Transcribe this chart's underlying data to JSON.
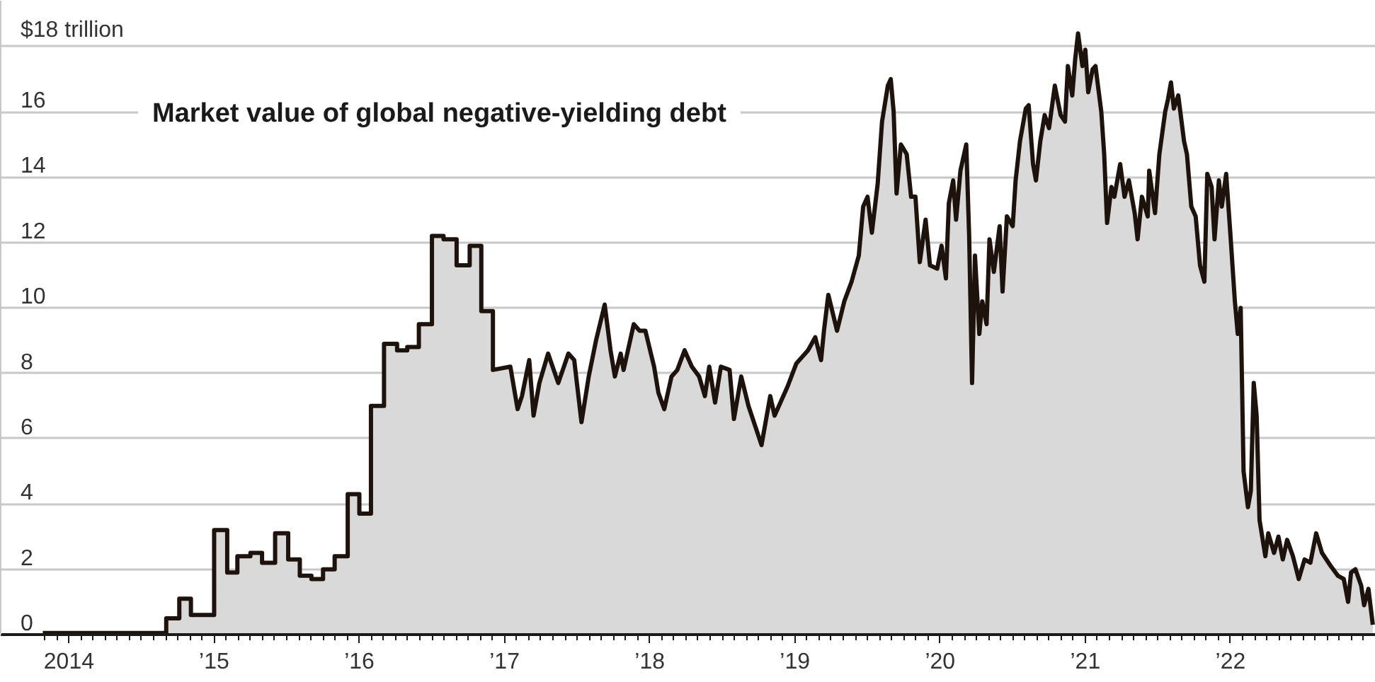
{
  "chart_data": {
    "type": "area",
    "title": "Market value of global negative-yielding debt",
    "x": [
      2013.82,
      2014.67,
      2014.67,
      2014.76,
      2014.76,
      2014.84,
      2014.84,
      2015.0,
      2015.0,
      2015.09,
      2015.09,
      2015.16,
      2015.16,
      2015.25,
      2015.25,
      2015.33,
      2015.33,
      2015.42,
      2015.42,
      2015.51,
      2015.51,
      2015.59,
      2015.59,
      2015.67,
      2015.67,
      2015.75,
      2015.75,
      2015.83,
      2015.83,
      2015.92,
      2015.92,
      2016.0,
      2016.0,
      2016.08,
      2016.08,
      2016.17,
      2016.17,
      2016.26,
      2016.26,
      2016.33,
      2016.33,
      2016.41,
      2016.41,
      2016.5,
      2016.5,
      2016.58,
      2016.58,
      2016.67,
      2016.67,
      2016.76,
      2016.76,
      2016.84,
      2016.84,
      2016.92,
      2016.92,
      2017.04,
      2017.09,
      2017.12,
      2017.17,
      2017.2,
      2017.24,
      2017.3,
      2017.37,
      2017.44,
      2017.48,
      2017.53,
      2017.58,
      2017.63,
      2017.69,
      2017.73,
      2017.76,
      2017.8,
      2017.82,
      2017.85,
      2017.89,
      2017.93,
      2017.97,
      2018.03,
      2018.06,
      2018.1,
      2018.15,
      2018.19,
      2018.24,
      2018.29,
      2018.34,
      2018.38,
      2018.41,
      2018.45,
      2018.49,
      2018.55,
      2018.58,
      2018.63,
      2018.68,
      2018.77,
      2018.83,
      2018.86,
      2018.95,
      2019.01,
      2019.09,
      2019.14,
      2019.18,
      2019.2,
      2019.23,
      2019.29,
      2019.34,
      2019.39,
      2019.44,
      2019.47,
      2019.5,
      2019.53,
      2019.57,
      2019.6,
      2019.64,
      2019.66,
      2019.68,
      2019.7,
      2019.73,
      2019.77,
      2019.8,
      2019.83,
      2019.86,
      2019.9,
      2019.93,
      2019.98,
      2020.01,
      2020.04,
      2020.06,
      2020.09,
      2020.11,
      2020.14,
      2020.18,
      2020.2,
      2020.22,
      2020.24,
      2020.27,
      2020.29,
      2020.32,
      2020.34,
      2020.37,
      2020.41,
      2020.43,
      2020.46,
      2020.5,
      2020.52,
      2020.55,
      2020.59,
      2020.61,
      2020.64,
      2020.66,
      2020.69,
      2020.72,
      2020.75,
      2020.79,
      2020.83,
      2020.86,
      2020.88,
      2020.91,
      2020.93,
      2020.95,
      2020.98,
      2021.0,
      2021.02,
      2021.05,
      2021.07,
      2021.11,
      2021.13,
      2021.15,
      2021.18,
      2021.2,
      2021.24,
      2021.27,
      2021.3,
      2021.34,
      2021.36,
      2021.39,
      2021.43,
      2021.44,
      2021.48,
      2021.51,
      2021.55,
      2021.57,
      2021.59,
      2021.61,
      2021.64,
      2021.68,
      2021.7,
      2021.73,
      2021.76,
      2021.79,
      2021.82,
      2021.84,
      2021.87,
      2021.89,
      2021.92,
      2021.94,
      2021.97,
      2022.0,
      2022.03,
      2022.05,
      2022.07,
      2022.09,
      2022.12,
      2022.14,
      2022.16,
      2022.18,
      2022.2,
      2022.24,
      2022.26,
      2022.3,
      2022.33,
      2022.36,
      2022.39,
      2022.43,
      2022.47,
      2022.51,
      2022.55,
      2022.59,
      2022.63,
      2022.69,
      2022.74,
      2022.78,
      2022.81,
      2022.83,
      2022.86,
      2022.9,
      2022.92,
      2022.95,
      2022.98
    ],
    "series": [
      {
        "color": "#1e130c",
        "values": [
          0.05,
          0.05,
          0.5,
          0.5,
          1.1,
          1.1,
          0.6,
          0.6,
          3.2,
          3.2,
          1.9,
          1.9,
          2.4,
          2.4,
          2.5,
          2.5,
          2.2,
          2.2,
          3.1,
          3.1,
          2.3,
          2.3,
          1.8,
          1.8,
          1.7,
          1.7,
          2.0,
          2.0,
          2.4,
          2.4,
          4.3,
          4.3,
          3.7,
          3.7,
          7.0,
          7.0,
          8.9,
          8.9,
          8.7,
          8.7,
          8.8,
          8.8,
          9.5,
          9.5,
          12.2,
          12.2,
          12.1,
          12.1,
          11.3,
          11.3,
          11.9,
          11.9,
          9.9,
          9.9,
          8.1,
          8.2,
          6.9,
          7.3,
          8.4,
          6.7,
          7.7,
          8.6,
          7.7,
          8.6,
          8.4,
          6.5,
          7.9,
          9.0,
          10.1,
          8.7,
          7.9,
          8.6,
          8.1,
          8.7,
          9.5,
          9.3,
          9.3,
          8.2,
          7.4,
          6.9,
          7.9,
          8.1,
          8.7,
          8.2,
          7.9,
          7.3,
          8.2,
          7.1,
          8.2,
          8.1,
          6.6,
          7.9,
          7.0,
          5.8,
          7.3,
          6.7,
          7.6,
          8.3,
          8.7,
          9.1,
          8.4,
          9.3,
          10.4,
          9.3,
          10.2,
          10.8,
          11.6,
          13.1,
          13.4,
          12.3,
          13.8,
          15.7,
          16.8,
          17.0,
          16.0,
          13.5,
          15.0,
          14.7,
          13.4,
          13.4,
          11.4,
          12.7,
          11.3,
          11.2,
          11.9,
          10.9,
          13.2,
          13.9,
          12.7,
          14.2,
          15.0,
          12.2,
          7.7,
          11.6,
          9.2,
          10.2,
          9.5,
          12.1,
          11.1,
          12.5,
          10.5,
          12.8,
          12.5,
          13.9,
          15.1,
          16.1,
          16.2,
          14.4,
          13.9,
          15.1,
          15.9,
          15.5,
          16.8,
          15.9,
          15.7,
          17.4,
          16.5,
          17.6,
          18.4,
          17.4,
          17.9,
          16.6,
          17.3,
          17.4,
          16.0,
          14.7,
          12.6,
          13.7,
          13.4,
          14.4,
          13.4,
          13.9,
          12.9,
          12.1,
          13.4,
          12.8,
          14.2,
          12.9,
          14.7,
          16.0,
          16.4,
          16.9,
          16.1,
          16.5,
          15.1,
          14.7,
          13.1,
          12.8,
          11.3,
          10.8,
          14.1,
          13.7,
          12.1,
          13.9,
          13.1,
          14.1,
          12.2,
          10.2,
          9.2,
          10.0,
          5.0,
          3.9,
          4.4,
          7.7,
          6.7,
          3.5,
          2.4,
          3.1,
          2.5,
          3.0,
          2.3,
          2.9,
          2.4,
          1.7,
          2.3,
          2.2,
          3.1,
          2.5,
          2.1,
          1.8,
          1.7,
          1.0,
          1.9,
          2.0,
          1.5,
          0.9,
          1.4,
          0.3
        ]
      }
    ],
    "xlim": [
      2013.53,
      2023.0
    ],
    "xticks": [
      {
        "value": 2013.833,
        "label": null
      },
      {
        "value": 2013.917,
        "label": null
      },
      {
        "value": 2014,
        "label": "2014"
      },
      {
        "value": 2014.083,
        "label": null
      },
      {
        "value": 2014.167,
        "label": null
      },
      {
        "value": 2014.25,
        "label": null
      },
      {
        "value": 2014.333,
        "label": null
      },
      {
        "value": 2014.417,
        "label": null
      },
      {
        "value": 2014.5,
        "label": null
      },
      {
        "value": 2014.583,
        "label": null
      },
      {
        "value": 2014.667,
        "label": null
      },
      {
        "value": 2014.75,
        "label": null
      },
      {
        "value": 2014.833,
        "label": null
      },
      {
        "value": 2014.917,
        "label": null
      },
      {
        "value": 2015,
        "label": "’15"
      },
      {
        "value": 2015.083,
        "label": null
      },
      {
        "value": 2015.167,
        "label": null
      },
      {
        "value": 2015.25,
        "label": null
      },
      {
        "value": 2015.333,
        "label": null
      },
      {
        "value": 2015.417,
        "label": null
      },
      {
        "value": 2015.5,
        "label": null
      },
      {
        "value": 2015.583,
        "label": null
      },
      {
        "value": 2015.667,
        "label": null
      },
      {
        "value": 2015.75,
        "label": null
      },
      {
        "value": 2015.833,
        "label": null
      },
      {
        "value": 2015.917,
        "label": null
      },
      {
        "value": 2016,
        "label": "’16"
      },
      {
        "value": 2016.083,
        "label": null
      },
      {
        "value": 2016.167,
        "label": null
      },
      {
        "value": 2016.25,
        "label": null
      },
      {
        "value": 2016.333,
        "label": null
      },
      {
        "value": 2016.417,
        "label": null
      },
      {
        "value": 2016.5,
        "label": null
      },
      {
        "value": 2016.583,
        "label": null
      },
      {
        "value": 2016.667,
        "label": null
      },
      {
        "value": 2016.75,
        "label": null
      },
      {
        "value": 2016.833,
        "label": null
      },
      {
        "value": 2016.917,
        "label": null
      },
      {
        "value": 2017,
        "label": "’17"
      },
      {
        "value": 2017.083,
        "label": null
      },
      {
        "value": 2017.167,
        "label": null
      },
      {
        "value": 2017.25,
        "label": null
      },
      {
        "value": 2017.333,
        "label": null
      },
      {
        "value": 2017.417,
        "label": null
      },
      {
        "value": 2017.5,
        "label": null
      },
      {
        "value": 2017.583,
        "label": null
      },
      {
        "value": 2017.667,
        "label": null
      },
      {
        "value": 2017.75,
        "label": null
      },
      {
        "value": 2017.833,
        "label": null
      },
      {
        "value": 2017.917,
        "label": null
      },
      {
        "value": 2018,
        "label": "’18"
      },
      {
        "value": 2018.083,
        "label": null
      },
      {
        "value": 2018.167,
        "label": null
      },
      {
        "value": 2018.25,
        "label": null
      },
      {
        "value": 2018.333,
        "label": null
      },
      {
        "value": 2018.417,
        "label": null
      },
      {
        "value": 2018.5,
        "label": null
      },
      {
        "value": 2018.583,
        "label": null
      },
      {
        "value": 2018.667,
        "label": null
      },
      {
        "value": 2018.75,
        "label": null
      },
      {
        "value": 2018.833,
        "label": null
      },
      {
        "value": 2018.917,
        "label": null
      },
      {
        "value": 2019,
        "label": "’19"
      },
      {
        "value": 2019.083,
        "label": null
      },
      {
        "value": 2019.167,
        "label": null
      },
      {
        "value": 2019.25,
        "label": null
      },
      {
        "value": 2019.333,
        "label": null
      },
      {
        "value": 2019.417,
        "label": null
      },
      {
        "value": 2019.5,
        "label": null
      },
      {
        "value": 2019.583,
        "label": null
      },
      {
        "value": 2019.667,
        "label": null
      },
      {
        "value": 2019.75,
        "label": null
      },
      {
        "value": 2019.833,
        "label": null
      },
      {
        "value": 2019.917,
        "label": null
      },
      {
        "value": 2020,
        "label": "’20"
      },
      {
        "value": 2020.083,
        "label": null
      },
      {
        "value": 2020.167,
        "label": null
      },
      {
        "value": 2020.25,
        "label": null
      },
      {
        "value": 2020.333,
        "label": null
      },
      {
        "value": 2020.417,
        "label": null
      },
      {
        "value": 2020.5,
        "label": null
      },
      {
        "value": 2020.583,
        "label": null
      },
      {
        "value": 2020.667,
        "label": null
      },
      {
        "value": 2020.75,
        "label": null
      },
      {
        "value": 2020.833,
        "label": null
      },
      {
        "value": 2020.917,
        "label": null
      },
      {
        "value": 2021,
        "label": "’21"
      },
      {
        "value": 2021.083,
        "label": null
      },
      {
        "value": 2021.167,
        "label": null
      },
      {
        "value": 2021.25,
        "label": null
      },
      {
        "value": 2021.333,
        "label": null
      },
      {
        "value": 2021.417,
        "label": null
      },
      {
        "value": 2021.5,
        "label": null
      },
      {
        "value": 2021.583,
        "label": null
      },
      {
        "value": 2021.667,
        "label": null
      },
      {
        "value": 2021.75,
        "label": null
      },
      {
        "value": 2021.833,
        "label": null
      },
      {
        "value": 2021.917,
        "label": null
      },
      {
        "value": 2022,
        "label": "’22"
      },
      {
        "value": 2022.083,
        "label": null
      },
      {
        "value": 2022.167,
        "label": null
      },
      {
        "value": 2022.25,
        "label": null
      },
      {
        "value": 2022.333,
        "label": null
      },
      {
        "value": 2022.417,
        "label": null
      },
      {
        "value": 2022.5,
        "label": null
      },
      {
        "value": 2022.583,
        "label": null
      },
      {
        "value": 2022.667,
        "label": null
      },
      {
        "value": 2022.75,
        "label": null
      },
      {
        "value": 2022.833,
        "label": null
      },
      {
        "value": 2022.917,
        "label": null
      }
    ],
    "ylim": [
      0,
      19.4
    ],
    "yticks": [
      0,
      2,
      4,
      6,
      8,
      10,
      12,
      14,
      16,
      {
        "value": 18,
        "label": "$18 trillion"
      }
    ],
    "grid": "y"
  }
}
